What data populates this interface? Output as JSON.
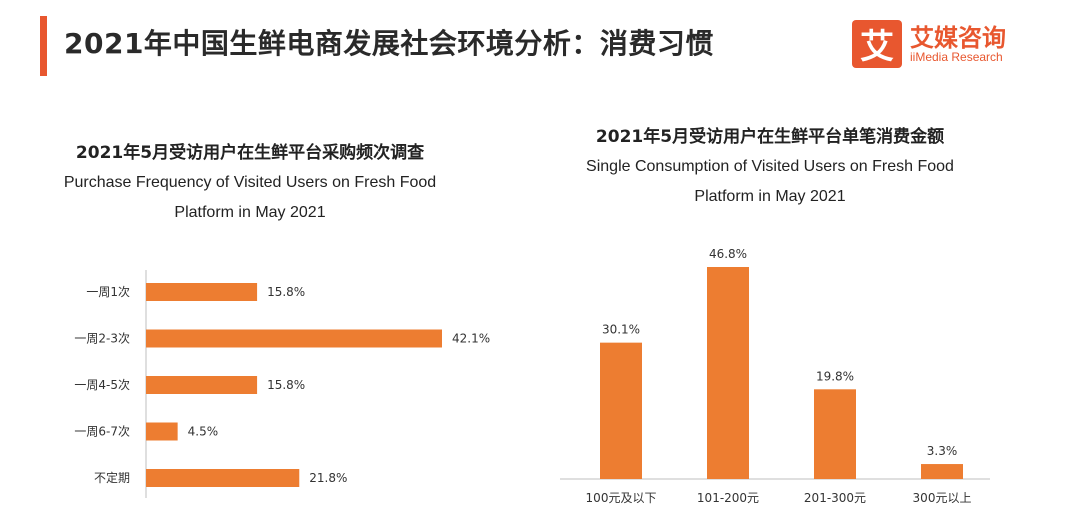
{
  "header": {
    "title": "2021年中国生鲜电商发展社会环境分析：消费习惯"
  },
  "logo": {
    "glyph": "艾",
    "name_cn": "艾媒咨询",
    "name_en": "iiMedia Research"
  },
  "colors": {
    "accent": "#e8572f",
    "bar": "#ed7d31",
    "axis": "#bfbfbf"
  },
  "chart_data": [
    {
      "type": "bar",
      "orientation": "horizontal",
      "title": "2021年5月受访用户在生鲜平台采购频次调查",
      "subtitle": "Purchase Frequency of Visited Users on Fresh Food Platform in May 2021",
      "categories": [
        "一周1次",
        "一周2-3次",
        "一周4-5次",
        "一周6-7次",
        "不定期"
      ],
      "values": [
        15.8,
        42.1,
        15.8,
        4.5,
        21.8
      ],
      "value_labels": [
        "15.8%",
        "42.1%",
        "15.8%",
        "4.5%",
        "21.8%"
      ],
      "unit": "%",
      "xlim": [
        0,
        42.1
      ],
      "grid": false,
      "legend": "none"
    },
    {
      "type": "bar",
      "orientation": "vertical",
      "title": "2021年5月受访用户在生鲜平台单笔消费金额",
      "subtitle": "Single Consumption of Visited Users on Fresh Food Platform in May 2021",
      "categories": [
        "100元及以下",
        "101-200元",
        "201-300元",
        "300元以上"
      ],
      "values": [
        30.1,
        46.8,
        19.8,
        3.3
      ],
      "value_labels": [
        "30.1%",
        "46.8%",
        "19.8%",
        "3.3%"
      ],
      "unit": "%",
      "ylim": [
        0,
        46.8
      ],
      "grid": false,
      "legend": "none"
    }
  ]
}
